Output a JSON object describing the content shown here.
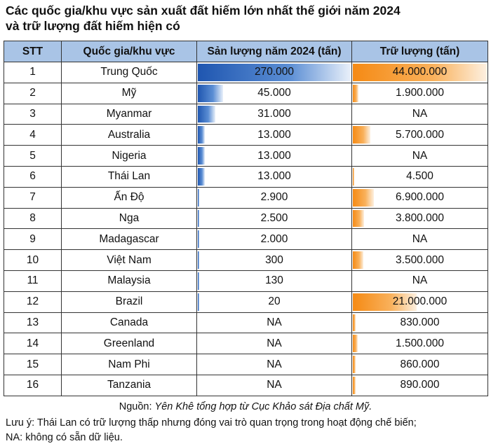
{
  "title_line1": "Các quốc gia/khu vực sản xuất đất hiếm lớn nhất thế giới năm 2024",
  "title_line2": "và trữ lượng đất hiếm hiện có",
  "colors": {
    "header_bg": "#a9c4e6",
    "production_bar": "#1f56b0",
    "reserves_bar": "#f58a14"
  },
  "source_prefix": "Nguồn:",
  "source_text": "Yên Khê tổng hợp từ Cục Khảo sát Địa chất Mỹ.",
  "note_line1": "Lưu ý: Thái Lan có trữ lượng thấp nhưng đóng vai trò quan trọng trong hoạt động chế biến;",
  "note_line2": "NA: không có sẵn dữ liệu.",
  "chart_data": {
    "type": "table",
    "columns": [
      "STT",
      "Quốc gia/khu vực",
      "Sản lượng năm 2024 (tấn)",
      "Trữ lượng (tấn)"
    ],
    "rows": [
      {
        "stt": "1",
        "country": "Trung Quốc",
        "production": "270.000",
        "production_value": 270000,
        "reserves": "44.000.000",
        "reserves_value": 44000000
      },
      {
        "stt": "2",
        "country": "Mỹ",
        "production": "45.000",
        "production_value": 45000,
        "reserves": "1.900.000",
        "reserves_value": 1900000
      },
      {
        "stt": "3",
        "country": "Myanmar",
        "production": "31.000",
        "production_value": 31000,
        "reserves": "NA",
        "reserves_value": null
      },
      {
        "stt": "4",
        "country": "Australia",
        "production": "13.000",
        "production_value": 13000,
        "reserves": "5.700.000",
        "reserves_value": 5700000
      },
      {
        "stt": "5",
        "country": "Nigeria",
        "production": "13.000",
        "production_value": 13000,
        "reserves": "NA",
        "reserves_value": null
      },
      {
        "stt": "6",
        "country": "Thái Lan",
        "production": "13.000",
        "production_value": 13000,
        "reserves": "4.500",
        "reserves_value": 4500
      },
      {
        "stt": "7",
        "country": "Ấn Độ",
        "production": "2.900",
        "production_value": 2900,
        "reserves": "6.900.000",
        "reserves_value": 6900000
      },
      {
        "stt": "8",
        "country": "Nga",
        "production": "2.500",
        "production_value": 2500,
        "reserves": "3.800.000",
        "reserves_value": 3800000
      },
      {
        "stt": "9",
        "country": "Madagascar",
        "production": "2.000",
        "production_value": 2000,
        "reserves": "NA",
        "reserves_value": null
      },
      {
        "stt": "10",
        "country": "Việt Nam",
        "production": "300",
        "production_value": 300,
        "reserves": "3.500.000",
        "reserves_value": 3500000
      },
      {
        "stt": "11",
        "country": "Malaysia",
        "production": "130",
        "production_value": 130,
        "reserves": "NA",
        "reserves_value": null
      },
      {
        "stt": "12",
        "country": "Brazil",
        "production": "20",
        "production_value": 20,
        "reserves": "21.000.000",
        "reserves_value": 21000000
      },
      {
        "stt": "13",
        "country": "Canada",
        "production": "NA",
        "production_value": null,
        "reserves": "830.000",
        "reserves_value": 830000
      },
      {
        "stt": "14",
        "country": "Greenland",
        "production": "NA",
        "production_value": null,
        "reserves": "1.500.000",
        "reserves_value": 1500000
      },
      {
        "stt": "15",
        "country": "Nam Phi",
        "production": "NA",
        "production_value": null,
        "reserves": "860.000",
        "reserves_value": 860000
      },
      {
        "stt": "16",
        "country": "Tanzania",
        "production": "NA",
        "production_value": null,
        "reserves": "890.000",
        "reserves_value": 890000
      }
    ]
  }
}
